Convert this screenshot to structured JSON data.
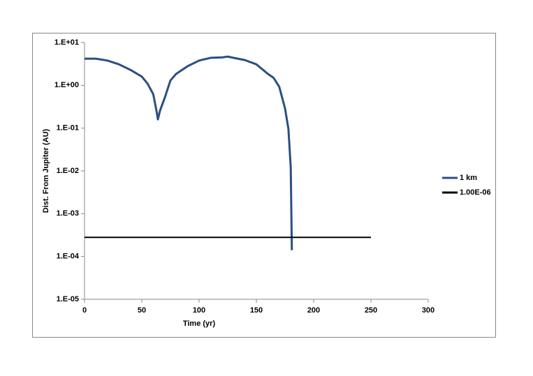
{
  "chart_data": {
    "type": "line",
    "x_label": "Time (yr)",
    "y_label": "Dist. From Jupiter (AU)",
    "log_scale": "y",
    "xlim": [
      0,
      300
    ],
    "xticks": [
      0,
      50,
      100,
      150,
      200,
      250,
      300
    ],
    "ylim": [
      1e-05,
      10
    ],
    "yticks": [
      {
        "value": 1e-05,
        "label": "1.E-05"
      },
      {
        "value": 0.0001,
        "label": "1.E-04"
      },
      {
        "value": 0.001,
        "label": "1.E-03"
      },
      {
        "value": 0.01,
        "label": "1.E-02"
      },
      {
        "value": 0.1,
        "label": "1.E-01"
      },
      {
        "value": 1,
        "label": "1.E+00"
      },
      {
        "value": 10,
        "label": "1.E+01"
      }
    ],
    "legend": "right",
    "series": [
      {
        "name": "1 km",
        "color": "#2b4f80",
        "x": [
          0,
          10,
          20,
          30,
          40,
          50,
          55,
          60,
          63,
          64,
          66,
          70,
          75,
          80,
          90,
          100,
          110,
          120,
          125,
          130,
          140,
          150,
          160,
          165,
          170,
          175,
          178,
          180,
          180.5,
          181
        ],
        "values": [
          4.2,
          4.2,
          3.8,
          3.1,
          2.3,
          1.6,
          1.1,
          0.62,
          0.24,
          0.16,
          0.26,
          0.51,
          1.3,
          1.85,
          2.8,
          3.8,
          4.4,
          4.5,
          4.7,
          4.4,
          3.9,
          3.1,
          1.85,
          1.5,
          0.92,
          0.29,
          0.095,
          0.012,
          0.0013,
          0.00014
        ]
      },
      {
        "name": "1.00E-06",
        "color": "#000000",
        "x": [
          0,
          250
        ],
        "values": [
          0.00028,
          0.00028
        ]
      }
    ]
  }
}
